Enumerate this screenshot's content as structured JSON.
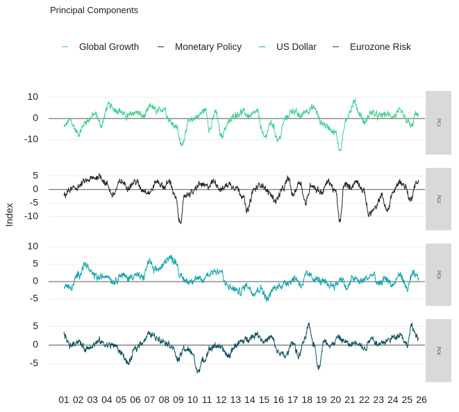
{
  "chart_data": {
    "type": "line",
    "title": "Principal Components",
    "ylabel": "Index",
    "x_categories": [
      "01",
      "02",
      "03",
      "04",
      "05",
      "06",
      "07",
      "08",
      "09",
      "10",
      "11",
      "12",
      "13",
      "14",
      "15",
      "16",
      "17",
      "18",
      "19",
      "20",
      "21",
      "22",
      "23",
      "24",
      "25",
      "26"
    ],
    "legend": [
      {
        "name": "Global Growth",
        "color": "#3ecf8e"
      },
      {
        "name": "Monetary Policy",
        "color": "#222222"
      },
      {
        "name": "US Dollar",
        "color": "#14a3a8"
      },
      {
        "name": "Eurozone Risk",
        "color": "#0b4f5c"
      }
    ],
    "panels": [
      {
        "strip_label": "PC1",
        "series": "Global Growth",
        "color": "#3ecf8e",
        "ylim": [
          -17,
          13
        ],
        "yticks": [
          10,
          0,
          -10
        ],
        "ytick_labels": [
          "10",
          "0",
          "-10"
        ],
        "ygrid": [
          10,
          0,
          -10
        ],
        "ylim_plot": [
          -15,
          11
        ],
        "anchors": [
          [
            2001.0,
            -4
          ],
          [
            2001.4,
            -1
          ],
          [
            2002.0,
            -7
          ],
          [
            2002.6,
            -1
          ],
          [
            2003.2,
            2
          ],
          [
            2003.6,
            -3
          ],
          [
            2004.1,
            6
          ],
          [
            2004.8,
            4
          ],
          [
            2005.4,
            1
          ],
          [
            2006.0,
            3
          ],
          [
            2006.6,
            1
          ],
          [
            2007.1,
            6
          ],
          [
            2007.5,
            3
          ],
          [
            2008.0,
            5
          ],
          [
            2008.4,
            -1
          ],
          [
            2008.9,
            -4
          ],
          [
            2009.2,
            -13
          ],
          [
            2009.7,
            -2
          ],
          [
            2010.3,
            1
          ],
          [
            2010.9,
            4
          ],
          [
            2011.2,
            -5
          ],
          [
            2011.6,
            3
          ],
          [
            2012.0,
            -8
          ],
          [
            2012.5,
            -2
          ],
          [
            2013.0,
            2
          ],
          [
            2013.5,
            3
          ],
          [
            2014.0,
            1
          ],
          [
            2014.5,
            3
          ],
          [
            2015.0,
            -9
          ],
          [
            2015.5,
            -2
          ],
          [
            2016.0,
            -10
          ],
          [
            2016.5,
            0
          ],
          [
            2017.0,
            4
          ],
          [
            2017.5,
            1
          ],
          [
            2018.0,
            4
          ],
          [
            2018.5,
            5
          ],
          [
            2019.0,
            -2
          ],
          [
            2019.5,
            -4
          ],
          [
            2020.0,
            -7
          ],
          [
            2020.3,
            -15
          ],
          [
            2020.7,
            -2
          ],
          [
            2021.0,
            4
          ],
          [
            2021.3,
            8
          ],
          [
            2021.7,
            2
          ],
          [
            2022.0,
            -2
          ],
          [
            2022.5,
            3
          ],
          [
            2023.0,
            1
          ],
          [
            2023.5,
            2
          ],
          [
            2024.0,
            1
          ],
          [
            2024.5,
            3
          ],
          [
            2025.0,
            -1
          ],
          [
            2025.3,
            -4
          ],
          [
            2025.6,
            2
          ],
          [
            2025.8,
            1
          ]
        ]
      },
      {
        "strip_label": "PC2",
        "series": "Monetary Policy",
        "color": "#222222",
        "ylim": [
          -15,
          8
        ],
        "yticks": [
          5,
          0,
          -5,
          -10
        ],
        "ytick_labels": [
          "5",
          "0",
          "-5",
          "-10"
        ],
        "ygrid": [
          5,
          0,
          -5,
          -10
        ],
        "ylim_plot": [
          -13,
          6
        ],
        "anchors": [
          [
            2001.0,
            -2
          ],
          [
            2001.5,
            0
          ],
          [
            2002.0,
            1
          ],
          [
            2002.5,
            3
          ],
          [
            2003.0,
            4
          ],
          [
            2003.5,
            5
          ],
          [
            2004.0,
            2
          ],
          [
            2004.4,
            -2
          ],
          [
            2005.0,
            3
          ],
          [
            2005.5,
            1
          ],
          [
            2006.0,
            3
          ],
          [
            2006.5,
            0
          ],
          [
            2007.0,
            -1
          ],
          [
            2007.5,
            3
          ],
          [
            2008.0,
            1
          ],
          [
            2008.4,
            3
          ],
          [
            2008.8,
            -3
          ],
          [
            2009.1,
            -12
          ],
          [
            2009.5,
            -2
          ],
          [
            2010.0,
            -1
          ],
          [
            2010.5,
            2
          ],
          [
            2011.0,
            1
          ],
          [
            2011.5,
            3
          ],
          [
            2012.0,
            0
          ],
          [
            2012.5,
            2
          ],
          [
            2013.0,
            1
          ],
          [
            2013.5,
            -2
          ],
          [
            2013.8,
            -8
          ],
          [
            2014.3,
            0
          ],
          [
            2014.8,
            2
          ],
          [
            2015.3,
            -1
          ],
          [
            2015.8,
            -4
          ],
          [
            2016.3,
            0
          ],
          [
            2016.7,
            4
          ],
          [
            2017.0,
            -2
          ],
          [
            2017.5,
            3
          ],
          [
            2017.9,
            -5
          ],
          [
            2018.3,
            2
          ],
          [
            2018.7,
            0
          ],
          [
            2019.0,
            -1
          ],
          [
            2019.5,
            3
          ],
          [
            2020.0,
            -1
          ],
          [
            2020.3,
            -12
          ],
          [
            2020.6,
            2
          ],
          [
            2021.0,
            1
          ],
          [
            2021.5,
            3
          ],
          [
            2022.0,
            -1
          ],
          [
            2022.3,
            -9
          ],
          [
            2022.8,
            -7
          ],
          [
            2023.2,
            -2
          ],
          [
            2023.6,
            -8
          ],
          [
            2024.0,
            -1
          ],
          [
            2024.5,
            3
          ],
          [
            2024.9,
            1
          ],
          [
            2025.2,
            -4
          ],
          [
            2025.6,
            2
          ],
          [
            2025.8,
            3
          ]
        ]
      },
      {
        "strip_label": "PC3",
        "series": "US Dollar",
        "color": "#14a3a8",
        "ylim": [
          -7,
          11
        ],
        "yticks": [
          10,
          5,
          0,
          -5
        ],
        "ytick_labels": [
          "10",
          "5",
          "0",
          "-5"
        ],
        "ygrid": [
          10,
          5,
          0,
          -5
        ],
        "ylim_plot": [
          -7,
          10
        ],
        "anchors": [
          [
            2001.0,
            -1
          ],
          [
            2001.5,
            -2
          ],
          [
            2002.0,
            2
          ],
          [
            2002.5,
            5
          ],
          [
            2003.0,
            2
          ],
          [
            2003.5,
            1
          ],
          [
            2004.0,
            2
          ],
          [
            2004.5,
            0
          ],
          [
            2005.0,
            2
          ],
          [
            2005.5,
            1
          ],
          [
            2006.0,
            2
          ],
          [
            2006.5,
            1
          ],
          [
            2007.0,
            6
          ],
          [
            2007.3,
            3
          ],
          [
            2007.8,
            4
          ],
          [
            2008.3,
            7
          ],
          [
            2008.8,
            6
          ],
          [
            2009.2,
            1
          ],
          [
            2009.7,
            0
          ],
          [
            2010.2,
            1
          ],
          [
            2010.7,
            0
          ],
          [
            2011.0,
            2
          ],
          [
            2011.5,
            3
          ],
          [
            2012.0,
            3
          ],
          [
            2012.3,
            -1
          ],
          [
            2012.8,
            -2
          ],
          [
            2013.3,
            -3
          ],
          [
            2013.8,
            -1
          ],
          [
            2014.2,
            -3
          ],
          [
            2014.8,
            -2
          ],
          [
            2015.2,
            -5
          ],
          [
            2015.7,
            -2
          ],
          [
            2016.2,
            -1
          ],
          [
            2016.7,
            0
          ],
          [
            2017.2,
            1
          ],
          [
            2017.6,
            -1
          ],
          [
            2018.0,
            2
          ],
          [
            2018.5,
            1
          ],
          [
            2019.0,
            0
          ],
          [
            2019.5,
            -1
          ],
          [
            2020.0,
            -1
          ],
          [
            2020.4,
            1
          ],
          [
            2020.8,
            -2
          ],
          [
            2021.2,
            1
          ],
          [
            2021.7,
            0
          ],
          [
            2022.2,
            1
          ],
          [
            2022.6,
            2
          ],
          [
            2023.0,
            -1
          ],
          [
            2023.5,
            1
          ],
          [
            2024.0,
            -1
          ],
          [
            2024.5,
            2
          ],
          [
            2025.0,
            -2
          ],
          [
            2025.4,
            2
          ],
          [
            2025.8,
            1
          ]
        ]
      },
      {
        "strip_label": "PC4",
        "series": "Eurozone Risk",
        "color": "#0b4f5c",
        "ylim": [
          -10,
          7
        ],
        "yticks": [
          5,
          0,
          -5
        ],
        "ytick_labels": [
          "5",
          "0",
          "-5"
        ],
        "ygrid": [
          5,
          0,
          -5
        ],
        "ylim_plot": [
          -8,
          6
        ],
        "anchors": [
          [
            2001.0,
            3
          ],
          [
            2001.4,
            0
          ],
          [
            2002.0,
            1
          ],
          [
            2002.5,
            -1
          ],
          [
            2003.0,
            0
          ],
          [
            2003.5,
            1
          ],
          [
            2004.0,
            0
          ],
          [
            2004.5,
            0
          ],
          [
            2005.0,
            -2
          ],
          [
            2005.5,
            -5
          ],
          [
            2006.0,
            -1
          ],
          [
            2006.5,
            1
          ],
          [
            2007.0,
            3
          ],
          [
            2007.5,
            2
          ],
          [
            2008.0,
            1
          ],
          [
            2008.5,
            0
          ],
          [
            2009.0,
            -4
          ],
          [
            2009.4,
            -1
          ],
          [
            2010.0,
            -2
          ],
          [
            2010.3,
            -7
          ],
          [
            2010.8,
            -4
          ],
          [
            2011.2,
            -1
          ],
          [
            2011.7,
            0
          ],
          [
            2012.0,
            -1
          ],
          [
            2012.5,
            -3
          ],
          [
            2013.0,
            0
          ],
          [
            2013.5,
            1
          ],
          [
            2014.0,
            2
          ],
          [
            2014.5,
            3
          ],
          [
            2015.0,
            1
          ],
          [
            2015.5,
            2
          ],
          [
            2016.0,
            -2
          ],
          [
            2016.5,
            -3
          ],
          [
            2017.0,
            1
          ],
          [
            2017.4,
            -3
          ],
          [
            2017.8,
            1
          ],
          [
            2018.1,
            5
          ],
          [
            2018.5,
            0
          ],
          [
            2018.8,
            -6
          ],
          [
            2019.2,
            1
          ],
          [
            2019.7,
            0
          ],
          [
            2020.2,
            2
          ],
          [
            2020.6,
            1
          ],
          [
            2021.0,
            0
          ],
          [
            2021.5,
            1
          ],
          [
            2022.0,
            -1
          ],
          [
            2022.5,
            2
          ],
          [
            2023.0,
            0
          ],
          [
            2023.5,
            1
          ],
          [
            2024.0,
            2
          ],
          [
            2024.5,
            3
          ],
          [
            2025.0,
            0
          ],
          [
            2025.3,
            5
          ],
          [
            2025.6,
            3
          ],
          [
            2025.8,
            2
          ]
        ]
      }
    ]
  }
}
